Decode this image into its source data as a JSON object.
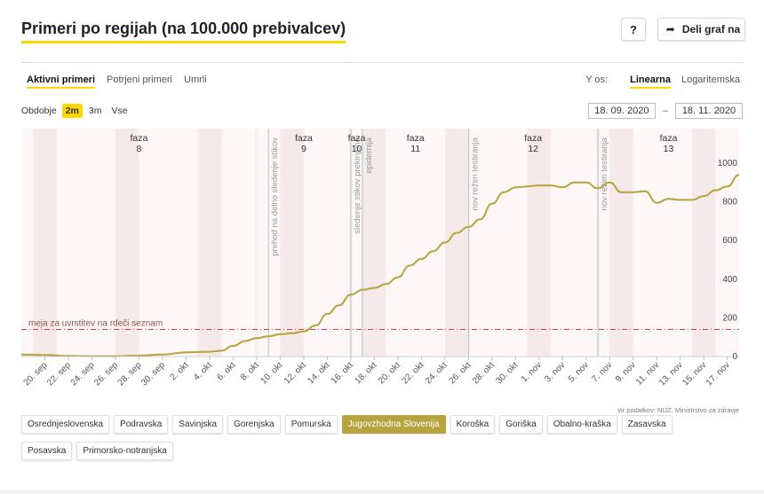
{
  "title": "Primeri po regijah (na 100.000 prebivalcev)",
  "help_label": "?",
  "share": {
    "icon": "share-arrow-icon",
    "label": "Deli graf na"
  },
  "tabs": [
    {
      "label": "Aktivni primeri",
      "active": true
    },
    {
      "label": "Potrjeni primeri",
      "active": false
    },
    {
      "label": "Umrli",
      "active": false
    }
  ],
  "y_axis_control": {
    "label": "Y os:",
    "options": [
      {
        "label": "Linearna",
        "active": true
      },
      {
        "label": "Logaritemska",
        "active": false
      }
    ]
  },
  "period": {
    "label": "Obdobje",
    "options": [
      {
        "label": "2m",
        "active": true
      },
      {
        "label": "3m",
        "active": false
      },
      {
        "label": "Vse",
        "active": false
      }
    ]
  },
  "date_range": {
    "from": "18. 09. 2020",
    "separator": "–",
    "to": "18. 11. 2020"
  },
  "source": "vir podatkov: NIJZ, Ministrstvo za zdravje",
  "regions": [
    {
      "label": "Osrednjeslovenska",
      "active": false
    },
    {
      "label": "Podravska",
      "active": false
    },
    {
      "label": "Savinjska",
      "active": false
    },
    {
      "label": "Gorenjska",
      "active": false
    },
    {
      "label": "Pomurska",
      "active": false
    },
    {
      "label": "Jugovzhodna Slovenija",
      "active": true
    },
    {
      "label": "Koroška",
      "active": false
    },
    {
      "label": "Goriška",
      "active": false
    },
    {
      "label": "Obalno-kraška",
      "active": false
    },
    {
      "label": "Zasavska",
      "active": false
    },
    {
      "label": "Posavska",
      "active": false
    },
    {
      "label": "Primorsko-notranjska",
      "active": false
    }
  ],
  "colors": {
    "accent": "#ffd600",
    "line": "#b5a43c",
    "threshold": "#e03c3c",
    "weekend": "#f5e9e9",
    "phase_bg": "#fdf7f7",
    "phase_gap": "#f1f1f1",
    "event_line": "#c8c8c8"
  },
  "chart_data": {
    "type": "line",
    "x_start": "2020-09-18",
    "x_end": "2020-11-18",
    "ylim": [
      0,
      1000
    ],
    "y_ticks": [
      0,
      200,
      400,
      600,
      800,
      1000
    ],
    "x_tick_labels": [
      "20. sep",
      "22. sep",
      "24. sep",
      "26. sep",
      "28. sep",
      "30. sep",
      "2. okt",
      "4. okt",
      "6. okt",
      "8. okt",
      "10. okt",
      "12. okt",
      "14. okt",
      "16. okt",
      "18. okt",
      "20. okt",
      "22. okt",
      "24. okt",
      "26. okt",
      "28. okt",
      "30. okt",
      "1. nov",
      "3. nov",
      "5. nov",
      "7. nov",
      "9. nov",
      "11. nov",
      "13. nov",
      "15. nov",
      "17. nov"
    ],
    "x_tick_dates": [
      "2020-09-20",
      "2020-09-22",
      "2020-09-24",
      "2020-09-26",
      "2020-09-28",
      "2020-09-30",
      "2020-10-02",
      "2020-10-04",
      "2020-10-06",
      "2020-10-08",
      "2020-10-10",
      "2020-10-12",
      "2020-10-14",
      "2020-10-16",
      "2020-10-18",
      "2020-10-20",
      "2020-10-22",
      "2020-10-24",
      "2020-10-26",
      "2020-10-28",
      "2020-10-30",
      "2020-11-01",
      "2020-11-03",
      "2020-11-05",
      "2020-11-07",
      "2020-11-09",
      "2020-11-11",
      "2020-11-13",
      "2020-11-15",
      "2020-11-17"
    ],
    "series": [
      {
        "region": "Jugovzhodna Slovenija",
        "x": [
          "2020-09-18",
          "2020-09-20",
          "2020-09-22",
          "2020-09-24",
          "2020-09-26",
          "2020-09-28",
          "2020-09-30",
          "2020-10-02",
          "2020-10-04",
          "2020-10-05",
          "2020-10-06",
          "2020-10-07",
          "2020-10-08",
          "2020-10-09",
          "2020-10-10",
          "2020-10-11",
          "2020-10-12",
          "2020-10-13",
          "2020-10-14",
          "2020-10-15",
          "2020-10-16",
          "2020-10-17",
          "2020-10-18",
          "2020-10-19",
          "2020-10-20",
          "2020-10-21",
          "2020-10-22",
          "2020-10-23",
          "2020-10-24",
          "2020-10-25",
          "2020-10-26",
          "2020-10-27",
          "2020-10-28",
          "2020-10-29",
          "2020-10-30",
          "2020-10-31",
          "2020-11-01",
          "2020-11-02",
          "2020-11-03",
          "2020-11-04",
          "2020-11-05",
          "2020-11-06",
          "2020-11-07",
          "2020-11-08",
          "2020-11-09",
          "2020-11-10",
          "2020-11-11",
          "2020-11-12",
          "2020-11-13",
          "2020-11-14",
          "2020-11-15",
          "2020-11-16",
          "2020-11-17",
          "2020-11-18"
        ],
        "values": [
          10,
          8,
          3,
          2,
          2,
          5,
          10,
          22,
          25,
          30,
          55,
          80,
          95,
          105,
          115,
          120,
          130,
          160,
          220,
          265,
          320,
          345,
          355,
          375,
          410,
          470,
          505,
          545,
          590,
          640,
          670,
          710,
          790,
          850,
          875,
          880,
          885,
          885,
          875,
          900,
          900,
          870,
          900,
          850,
          850,
          855,
          795,
          815,
          810,
          810,
          830,
          860,
          880,
          940
        ]
      }
    ],
    "threshold": {
      "value": 140,
      "label": "meja za uvrstitev na rdeči seznam"
    },
    "weekends": [
      [
        "2020-09-19",
        "2020-09-20"
      ],
      [
        "2020-09-26",
        "2020-09-27"
      ],
      [
        "2020-10-03",
        "2020-10-04"
      ],
      [
        "2020-10-10",
        "2020-10-11"
      ],
      [
        "2020-10-17",
        "2020-10-18"
      ],
      [
        "2020-10-24",
        "2020-10-25"
      ],
      [
        "2020-10-31",
        "2020-11-01"
      ],
      [
        "2020-11-07",
        "2020-11-08"
      ],
      [
        "2020-11-14",
        "2020-11-15"
      ]
    ],
    "phases": [
      {
        "label": "faza 8",
        "start": "2020-09-18",
        "end": "2020-10-08"
      },
      {
        "label": "faza 9",
        "start": "2020-10-08",
        "end": "2020-10-16"
      },
      {
        "label": "faza 10",
        "start": "2020-10-16",
        "end": "2020-10-17"
      },
      {
        "label": "faza 11",
        "start": "2020-10-17",
        "end": "2020-10-26"
      },
      {
        "label": "faza 12",
        "start": "2020-10-26",
        "end": "2020-11-06"
      },
      {
        "label": "faza 13",
        "start": "2020-11-06",
        "end": "2020-11-18"
      }
    ],
    "events": [
      {
        "date": "2020-10-09",
        "label": "prehod na delno sledenje stikov"
      },
      {
        "date": "2020-10-16",
        "label": "sledenje stikov prekinjeno"
      },
      {
        "date": "2020-10-17",
        "label": "epidemija"
      },
      {
        "date": "2020-10-26",
        "label": "nov režim testiranja"
      },
      {
        "date": "2020-11-06",
        "label": "nov režim testiranja"
      }
    ]
  }
}
